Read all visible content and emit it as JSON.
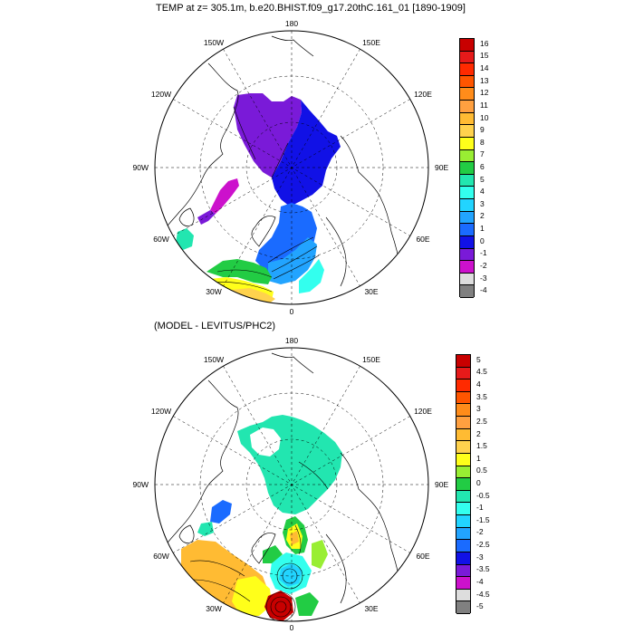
{
  "panel1": {
    "title": "TEMP at z= 305.1m, b.e20.BHIST.f09_g17.20thC.161_01 [1890-1909]",
    "lon_labels": {
      "top": "180",
      "bottom": "0",
      "left": "90W",
      "right": "90E",
      "ul1": "150W",
      "ul2": "120W",
      "ur1": "150E",
      "ur2": "120E",
      "ll1": "60W",
      "ll2": "30W",
      "lr1": "60E",
      "lr2": "30E"
    },
    "colorbar": {
      "labels": [
        "16",
        "15",
        "14",
        "13",
        "12",
        "11",
        "10",
        "9",
        "8",
        "7",
        "6",
        "5",
        "4",
        "3",
        "2",
        "1",
        "0",
        "-1",
        "-2",
        "-3",
        "-4"
      ],
      "colors": [
        "#c80000",
        "#e61a1a",
        "#ff2a00",
        "#ff5500",
        "#ff8c1a",
        "#ffa040",
        "#ffbb33",
        "#ffd24d",
        "#ffff1a",
        "#99ee33",
        "#22cc44",
        "#22e6b0",
        "#33ffee",
        "#22d4ff",
        "#22a4ff",
        "#1a6bff",
        "#1111e6",
        "#7a1ad8",
        "#cc11cc",
        "#dddddd",
        "#808080"
      ]
    }
  },
  "panel2": {
    "title": "(MODEL - LEVITUS/PHC2)",
    "lon_labels": {
      "top": "180",
      "bottom": "0",
      "left": "90W",
      "right": "90E",
      "ul1": "150W",
      "ul2": "120W",
      "ur1": "150E",
      "ur2": "120E",
      "ll1": "60W",
      "ll2": "30W",
      "lr1": "60E",
      "lr2": "30E"
    },
    "colorbar": {
      "labels": [
        "5",
        "4.5",
        "4",
        "3.5",
        "3",
        "2.5",
        "2",
        "1.5",
        "1",
        "0.5",
        "0",
        "-0.5",
        "-1",
        "-1.5",
        "-2",
        "-2.5",
        "-3",
        "-3.5",
        "-4",
        "-4.5",
        "-5"
      ],
      "colors": [
        "#c80000",
        "#e61a1a",
        "#ff2a00",
        "#ff5500",
        "#ff8c1a",
        "#ffa040",
        "#ffbb33",
        "#ffd24d",
        "#ffff1a",
        "#99ee33",
        "#22cc44",
        "#22e6b0",
        "#33ffee",
        "#22d4ff",
        "#22a4ff",
        "#1a6bff",
        "#1111e6",
        "#7a1ad8",
        "#cc11cc",
        "#dddddd",
        "#808080"
      ]
    }
  }
}
